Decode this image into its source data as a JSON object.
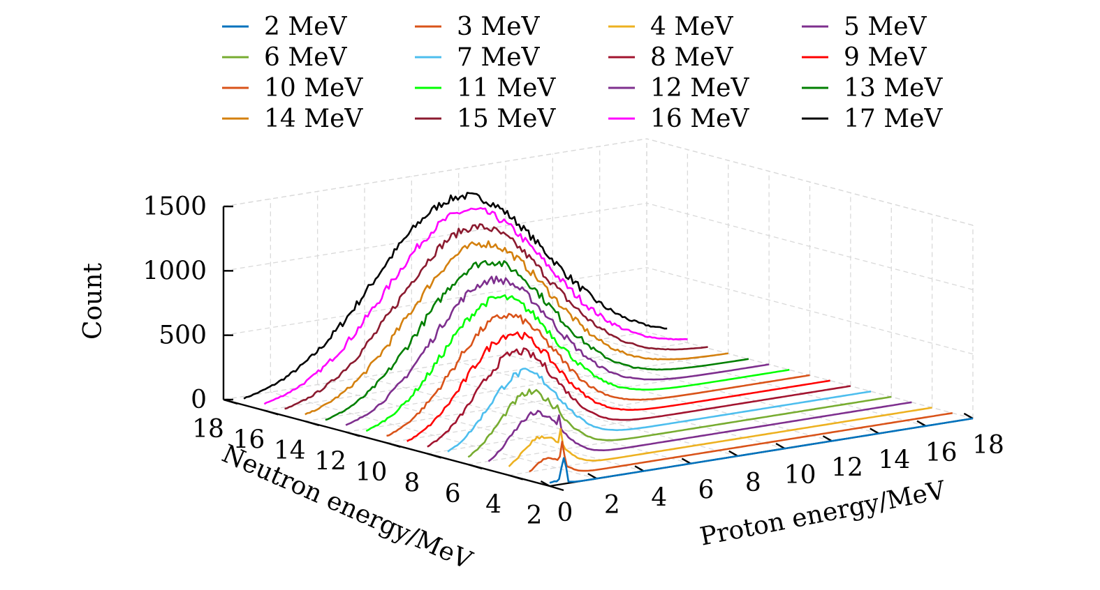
{
  "chart_data": {
    "type": "line",
    "projection": "3d-waterfall",
    "zlabel": "Count",
    "xlabel": "Proton energy/MeV",
    "ylabel": "Neutron energy/MeV",
    "x_ticks": [
      0,
      2,
      4,
      6,
      8,
      10,
      12,
      14,
      16,
      18
    ],
    "y_ticks": [
      2,
      4,
      6,
      8,
      10,
      12,
      14,
      16,
      18
    ],
    "z_ticks": [
      0,
      500,
      1000,
      1500
    ],
    "xlim": [
      0,
      18
    ],
    "ylim": [
      2,
      18
    ],
    "zlim": [
      0,
      1500
    ],
    "grid": true,
    "legend_position": "top",
    "legend_columns": 4,
    "series": [
      {
        "name": "2 MeV",
        "neutron_energy": 2,
        "color": "#0072BD",
        "spike_proton_energy": 0.6,
        "spike_count": 210,
        "peak_proton_energy": 0.2,
        "peak_count": 30,
        "width": 0.6
      },
      {
        "name": "3 MeV",
        "neutron_energy": 3,
        "color": "#D95319",
        "spike_proton_energy": 1.4,
        "spike_count": 250,
        "peak_proton_energy": 0.8,
        "peak_count": 150,
        "width": 0.9
      },
      {
        "name": "4 MeV",
        "neutron_energy": 4,
        "color": "#EDB120",
        "spike_proton_energy": 2.2,
        "spike_count": 290,
        "peak_proton_energy": 1.4,
        "peak_count": 260,
        "width": 1.2
      },
      {
        "name": "5 MeV",
        "neutron_energy": 5,
        "color": "#7E2F8E",
        "spike_proton_energy": 3.0,
        "spike_count": 330,
        "peak_proton_energy": 2.0,
        "peak_count": 380,
        "width": 1.5
      },
      {
        "name": "6 MeV",
        "neutron_energy": 6,
        "color": "#77AC30",
        "spike_proton_energy": 3.8,
        "spike_count": 360,
        "peak_proton_energy": 2.6,
        "peak_count": 480,
        "width": 1.8
      },
      {
        "name": "7 MeV",
        "neutron_energy": 7,
        "color": "#4DBEEE",
        "spike_proton_energy": 4.6,
        "spike_count": 390,
        "peak_proton_energy": 3.2,
        "peak_count": 580,
        "width": 2.1
      },
      {
        "name": "8 MeV",
        "neutron_energy": 8,
        "color": "#A2142F",
        "spike_proton_energy": 5.4,
        "spike_count": 410,
        "peak_proton_energy": 3.8,
        "peak_count": 680,
        "width": 2.4
      },
      {
        "name": "9 MeV",
        "neutron_energy": 9,
        "color": "#FF0000",
        "spike_proton_energy": 6.2,
        "spike_count": 430,
        "peak_proton_energy": 4.4,
        "peak_count": 760,
        "width": 2.7
      },
      {
        "name": "10 MeV",
        "neutron_energy": 10,
        "color": "#D95319",
        "spike_proton_energy": 7.0,
        "spike_count": 440,
        "peak_proton_energy": 5.0,
        "peak_count": 840,
        "width": 3.0
      },
      {
        "name": "11 MeV",
        "neutron_energy": 11,
        "color": "#00FF00",
        "spike_proton_energy": 7.8,
        "spike_count": 450,
        "peak_proton_energy": 5.6,
        "peak_count": 920,
        "width": 3.3
      },
      {
        "name": "12 MeV",
        "neutron_energy": 12,
        "color": "#7E2F8E",
        "spike_proton_energy": 8.6,
        "spike_count": 460,
        "peak_proton_energy": 6.2,
        "peak_count": 1000,
        "width": 3.6
      },
      {
        "name": "13 MeV",
        "neutron_energy": 13,
        "color": "#007F00",
        "spike_proton_energy": 9.4,
        "spike_count": 470,
        "peak_proton_energy": 6.8,
        "peak_count": 1080,
        "width": 3.9
      },
      {
        "name": "14 MeV",
        "neutron_energy": 14,
        "color": "#D4800E",
        "spike_proton_energy": 10.2,
        "spike_count": 480,
        "peak_proton_energy": 7.4,
        "peak_count": 1160,
        "width": 4.2
      },
      {
        "name": "15 MeV",
        "neutron_energy": 15,
        "color": "#8B1A2F",
        "spike_proton_energy": 11.0,
        "spike_count": 490,
        "peak_proton_energy": 8.0,
        "peak_count": 1230,
        "width": 4.5
      },
      {
        "name": "16 MeV",
        "neutron_energy": 16,
        "color": "#FF00FF",
        "spike_proton_energy": 11.8,
        "spike_count": 500,
        "peak_proton_energy": 8.6,
        "peak_count": 1300,
        "width": 4.8
      },
      {
        "name": "17 MeV",
        "neutron_energy": 17,
        "color": "#000000",
        "spike_proton_energy": 12.6,
        "spike_count": 510,
        "peak_proton_energy": 9.2,
        "peak_count": 1350,
        "width": 5.1
      }
    ]
  }
}
